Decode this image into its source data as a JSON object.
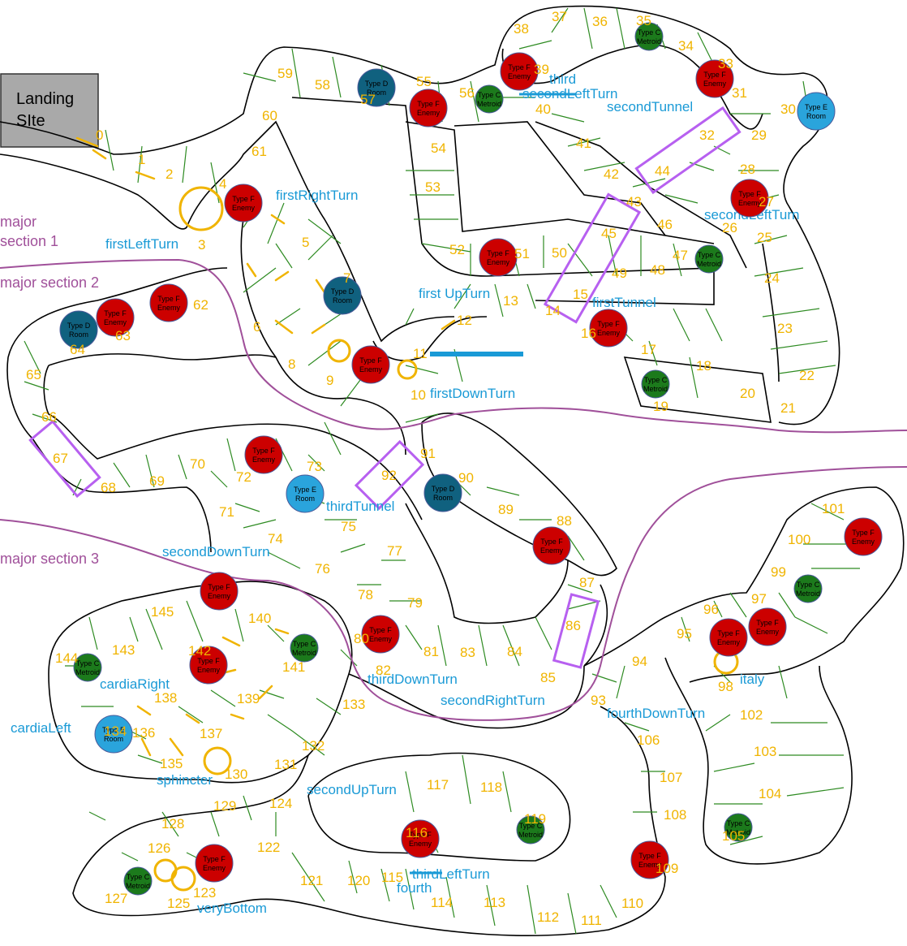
{
  "landing": {
    "line1": "Landing",
    "line2": "SIte"
  },
  "sections": [
    {
      "id": "s1a",
      "text": "major"
    },
    {
      "id": "s1b",
      "text": "section 1"
    },
    {
      "id": "s2",
      "text": "major section 2"
    },
    {
      "id": "s3",
      "text": "major section 3"
    }
  ],
  "labels": [
    {
      "id": "firstRightTurn",
      "text": "firstRightTurn"
    },
    {
      "id": "firstLeftTurn",
      "text": "firstLeftTurn"
    },
    {
      "id": "firstUpTurn",
      "text": "first UpTurn"
    },
    {
      "id": "firstDownTurn",
      "text": "firstDownTurn"
    },
    {
      "id": "firstTunnel",
      "text": "firstTunnel"
    },
    {
      "id": "secondTunnel",
      "text": "secondTunnel"
    },
    {
      "id": "thirdTunnel",
      "text": "thirdTunnel"
    },
    {
      "id": "third",
      "text": "third"
    },
    {
      "id": "secondLeftTurnTop",
      "text": "secondLeftTurn"
    },
    {
      "id": "secondLeftTurn",
      "text": "secondLeftTurn"
    },
    {
      "id": "secondDownTurn",
      "text": "secondDownTurn"
    },
    {
      "id": "thirdDownTurn",
      "text": "thirdDownTurn"
    },
    {
      "id": "secondRightTurn",
      "text": "secondRightTurn"
    },
    {
      "id": "fourthDownTurn",
      "text": "fourthDownTurn"
    },
    {
      "id": "cardiaRight",
      "text": "cardiaRight"
    },
    {
      "id": "cardiaLeft",
      "text": "cardiaLeft"
    },
    {
      "id": "sphincter",
      "text": "sphincter"
    },
    {
      "id": "secondUpTurn",
      "text": "secondUpTurn"
    },
    {
      "id": "thirdLeftTurn",
      "text": "thirdLeftTurn"
    },
    {
      "id": "fourth",
      "text": "fourth"
    },
    {
      "id": "veryBottom",
      "text": "veryBottom"
    },
    {
      "id": "italy",
      "text": "italy"
    }
  ],
  "cells": [
    "0",
    "1",
    "2",
    "3",
    "4",
    "5",
    "6",
    "7",
    "8",
    "9",
    "10",
    "11",
    "12",
    "13",
    "14",
    "15",
    "16",
    "17",
    "18",
    "19",
    "20",
    "21",
    "22",
    "23",
    "24",
    "25",
    "26",
    "27",
    "28",
    "29",
    "30",
    "31",
    "32",
    "33",
    "34",
    "35",
    "36",
    "37",
    "38",
    "39",
    "40",
    "41",
    "42",
    "43",
    "44",
    "45",
    "46",
    "47",
    "48",
    "49",
    "50",
    "51",
    "52",
    "53",
    "54",
    "55",
    "56",
    "57",
    "58",
    "59",
    "60",
    "61",
    "62",
    "63",
    "64",
    "65",
    "66",
    "67",
    "68",
    "69",
    "70",
    "71",
    "72",
    "73",
    "74",
    "75",
    "76",
    "77",
    "78",
    "79",
    "80",
    "81",
    "82",
    "83",
    "84",
    "85",
    "86",
    "87",
    "88",
    "89",
    "90",
    "91",
    "92",
    "93",
    "94",
    "95",
    "96",
    "97",
    "98",
    "99",
    "100",
    "101",
    "102",
    "103",
    "104",
    "105",
    "106",
    "107",
    "108",
    "109",
    "110",
    "111",
    "112",
    "113",
    "114",
    "115",
    "116",
    "117",
    "118",
    "119",
    "120",
    "121",
    "122",
    "123",
    "124",
    "125",
    "126",
    "127",
    "128",
    "129",
    "130",
    "131",
    "132",
    "133",
    "134",
    "135",
    "136",
    "137",
    "138",
    "139",
    "140",
    "141",
    "142",
    "143",
    "144",
    "145"
  ],
  "markerTypes": {
    "F": {
      "line1": "Type F",
      "line2": "Enemy",
      "color": "#cc0000"
    },
    "D": {
      "line1": "Type D",
      "line2": "Room",
      "color": "#10617f"
    },
    "C": {
      "line1": "Type C",
      "line2": "Metroid",
      "color": "#1c7a1c"
    },
    "E": {
      "line1": "Type E",
      "line2": "Room",
      "color": "#2aa4dc"
    }
  },
  "colors": {
    "cell": "#f0b400",
    "nav": "#1a9ad6",
    "section": "#a0509a",
    "tunnel": "#b760f0",
    "divider": "#2e8b22"
  }
}
